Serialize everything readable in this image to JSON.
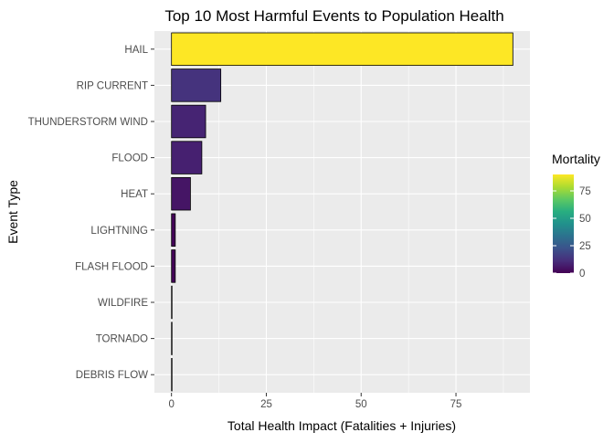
{
  "chart_data": {
    "type": "bar",
    "orientation": "horizontal",
    "title": "Top 10 Most Harmful Events to Population Health",
    "xlabel": "Total Health Impact (Fatalities + Injuries)",
    "ylabel": "Event Type",
    "xlim": [
      -4.5,
      94.5
    ],
    "xticks": [
      0,
      25,
      50,
      75
    ],
    "grid": true,
    "legend_position": "right",
    "categories": [
      "HAIL",
      "RIP CURRENT",
      "THUNDERSTORM WIND",
      "FLOOD",
      "HEAT",
      "LIGHTNING",
      "FLASH FLOOD",
      "WILDFIRE",
      "TORNADO",
      "DEBRIS FLOW"
    ],
    "values": [
      90,
      13,
      9,
      8,
      5,
      1,
      1,
      0,
      0,
      0
    ],
    "mortality": [
      90,
      13,
      9,
      8,
      5,
      1,
      1,
      0,
      0,
      0
    ],
    "legend": {
      "title": "Mortality",
      "ticks": [
        0,
        25,
        50,
        75
      ],
      "range": [
        0,
        90
      ],
      "palette": "viridis"
    },
    "colors": {
      "panel_background": "#ebebeb",
      "grid": "#ffffff",
      "bar_outline": "#000000"
    }
  }
}
